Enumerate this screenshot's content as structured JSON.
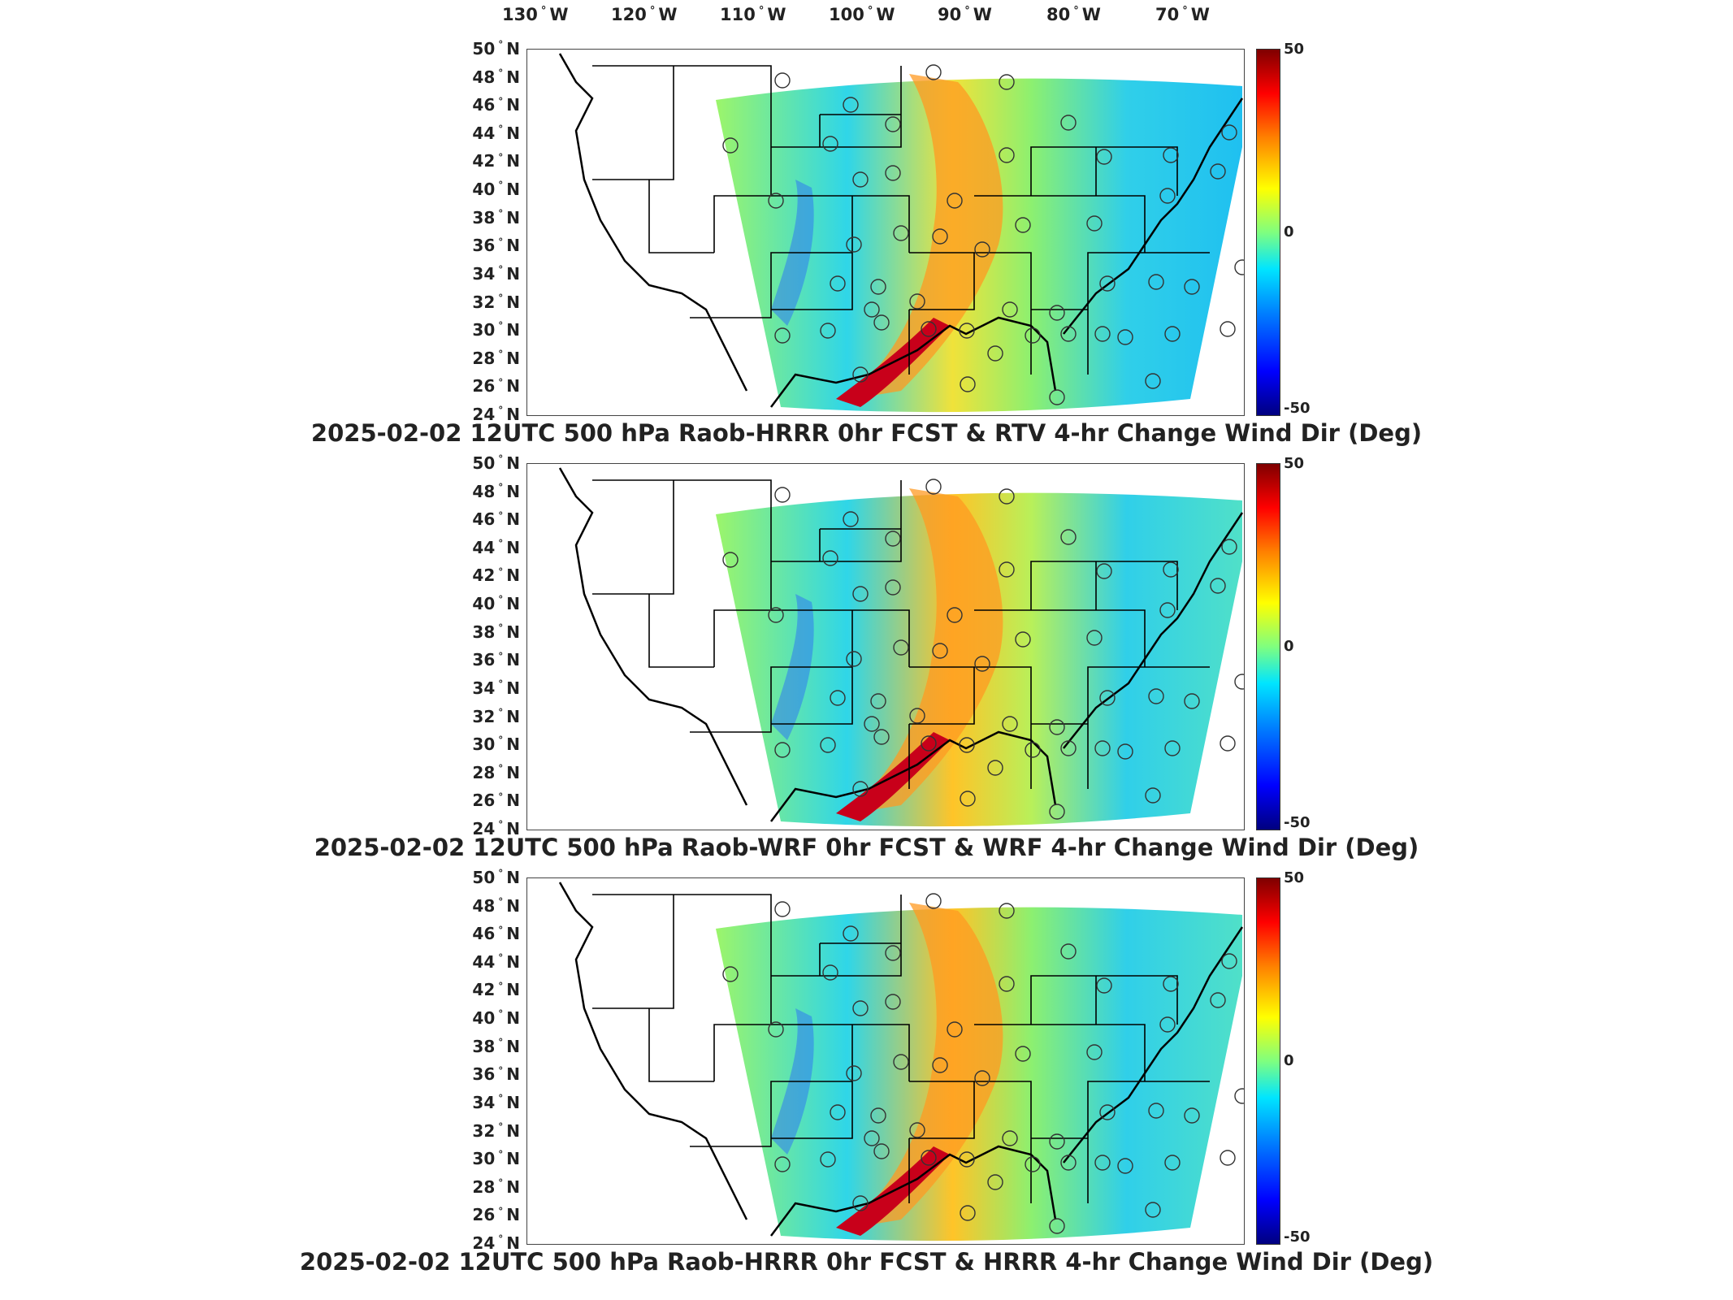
{
  "longitude_labels": [
    "130",
    "120",
    "110",
    "100",
    "90",
    "80",
    "70"
  ],
  "lon_suffix": "W",
  "latitude_labels": [
    "50",
    "48",
    "46",
    "44",
    "42",
    "40",
    "38",
    "36",
    "34",
    "32",
    "30",
    "28",
    "26",
    "24"
  ],
  "lat_suffix": "N",
  "colorbar": {
    "max_label": "50",
    "mid_label": "0",
    "min_label": "-50",
    "colors": [
      "#00007f",
      "#0000ff",
      "#0080ff",
      "#00e5ff",
      "#7fff7f",
      "#ffff00",
      "#ff8000",
      "#ff0000",
      "#7f0000"
    ]
  },
  "panels": [
    {
      "title": "2025-02-02 12UTC 500 hPa Raob-HRRR 0hr FCST & RTV 4-hr Change Wind Dir (Deg)"
    },
    {
      "title": "2025-02-02 12UTC 500 hPa Raob-WRF 0hr FCST & WRF 4-hr Change Wind Dir (Deg)"
    },
    {
      "title": "2025-02-02 12UTC 500 hPa Raob-HRRR 0hr FCST & HRRR 4-hr Change Wind Dir (Deg)"
    }
  ]
}
